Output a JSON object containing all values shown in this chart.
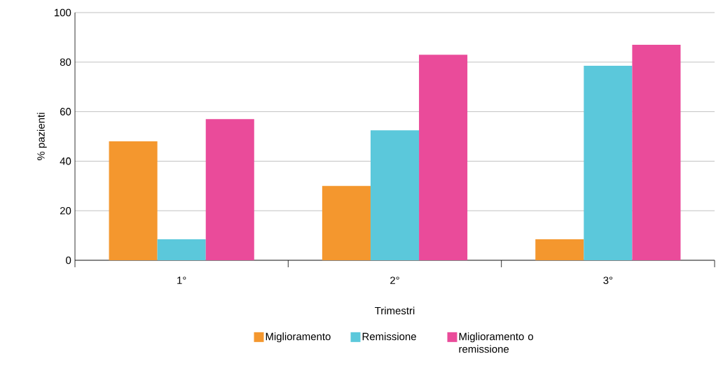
{
  "chart_data": {
    "type": "bar",
    "xlabel": "Trimestri",
    "ylabel": "% pazienti",
    "categories": [
      "1°",
      "2°",
      "3°"
    ],
    "series": [
      {
        "name": "Miglioramento",
        "color": "#f4972e",
        "values": [
          48,
          30,
          8.5
        ]
      },
      {
        "name": "Remissione",
        "color": "#5bc8db",
        "values": [
          8.5,
          52.5,
          78.5
        ]
      },
      {
        "name": "Miglioramento o remissione",
        "color": "#ea4b9a",
        "values": [
          57,
          83,
          87
        ]
      }
    ],
    "ylim": [
      0,
      100
    ],
    "yticks": [
      0,
      20,
      40,
      60,
      80,
      100
    ],
    "grid": "y",
    "legend": "bottom"
  }
}
